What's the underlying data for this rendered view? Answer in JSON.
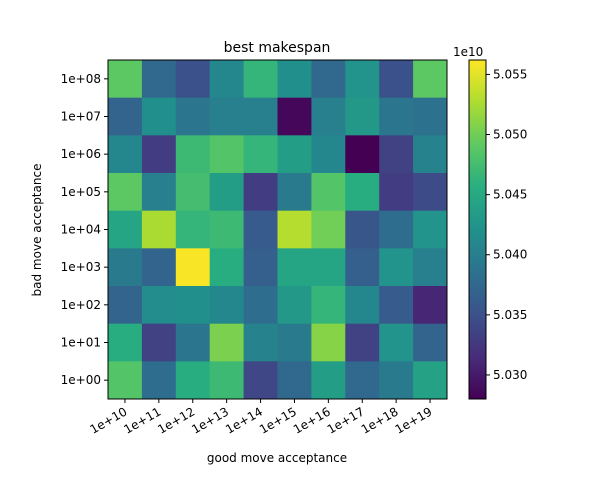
{
  "chart_data": {
    "type": "heatmap",
    "title": "best makespan",
    "xlabel": "good move acceptance",
    "ylabel": "bad move acceptance",
    "x_categories": [
      "1e+10",
      "1e+11",
      "1e+12",
      "1e+13",
      "1e+14",
      "1e+15",
      "1e+16",
      "1e+17",
      "1e+18",
      "1e+19"
    ],
    "y_categories": [
      "1e+08",
      "1e+07",
      "1e+06",
      "1e+05",
      "1e+04",
      "1e+03",
      "1e+02",
      "1e+01",
      "1e+00"
    ],
    "colormap": "viridis",
    "colorbar": {
      "min": 5.028,
      "max": 5.0562,
      "ticks": [
        "5.030",
        "5.035",
        "5.040",
        "5.045",
        "5.050",
        "5.055"
      ],
      "tick_values": [
        5.03,
        5.035,
        5.04,
        5.045,
        5.05,
        5.055
      ],
      "offset_label": "1e10"
    },
    "values": [
      [
        5.049,
        5.0375,
        5.035,
        5.041,
        5.0465,
        5.042,
        5.0375,
        5.0425,
        5.035,
        5.049
      ],
      [
        5.037,
        5.042,
        5.039,
        5.04,
        5.04,
        5.0285,
        5.04,
        5.043,
        5.039,
        5.0385
      ],
      [
        5.041,
        5.033,
        5.047,
        5.0485,
        5.0465,
        5.0435,
        5.041,
        5.028,
        5.0335,
        5.0405
      ],
      [
        5.049,
        5.04,
        5.0475,
        5.0435,
        5.033,
        5.0395,
        5.0485,
        5.0455,
        5.033,
        5.0345
      ],
      [
        5.0445,
        5.0525,
        5.0465,
        5.047,
        5.036,
        5.053,
        5.05,
        5.0355,
        5.038,
        5.0425
      ],
      [
        5.0395,
        5.037,
        5.056,
        5.0455,
        5.0365,
        5.0445,
        5.0445,
        5.0365,
        5.0425,
        5.04
      ],
      [
        5.037,
        5.0415,
        5.042,
        5.041,
        5.038,
        5.043,
        5.0465,
        5.041,
        5.036,
        5.031
      ],
      [
        5.0455,
        5.0335,
        5.039,
        5.0505,
        5.0405,
        5.0395,
        5.051,
        5.0335,
        5.0425,
        5.037
      ],
      [
        5.0485,
        5.038,
        5.0455,
        5.047,
        5.034,
        5.0375,
        5.0435,
        5.0375,
        5.0395,
        5.044
      ]
    ]
  }
}
